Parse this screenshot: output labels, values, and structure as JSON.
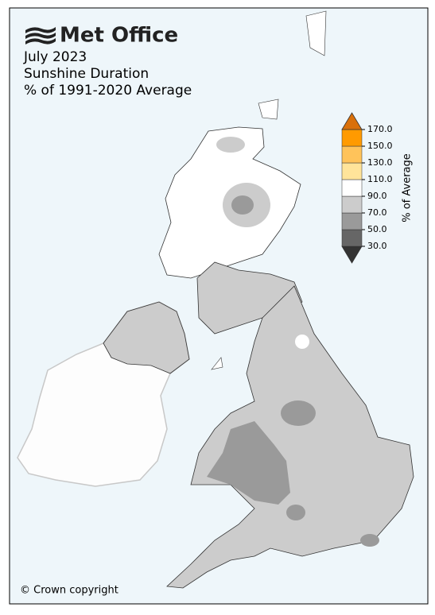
{
  "header": {
    "brand": "Met Office",
    "title": "July 2023",
    "subtitle": "Sunshine Duration",
    "measure": "% of 1991-2020 Average"
  },
  "legend": {
    "title": "% of Average",
    "ticks": [
      {
        "value": 30,
        "label": "30.0"
      },
      {
        "value": 50,
        "label": "50.0"
      },
      {
        "value": 70,
        "label": "70.0"
      },
      {
        "value": 90,
        "label": "90.0"
      },
      {
        "value": 110,
        "label": "110.0"
      },
      {
        "value": 130,
        "label": "130.0"
      },
      {
        "value": 150,
        "label": "150.0"
      },
      {
        "value": 170,
        "label": "170.0"
      }
    ],
    "colors": [
      "#333333",
      "#666666",
      "#9a9a9a",
      "#cccccc",
      "#ffffff",
      "#ffe49a",
      "#ffc35a",
      "#ff9a00",
      "#d9700a"
    ]
  },
  "footer": {
    "copyright": "© Crown copyright"
  }
}
